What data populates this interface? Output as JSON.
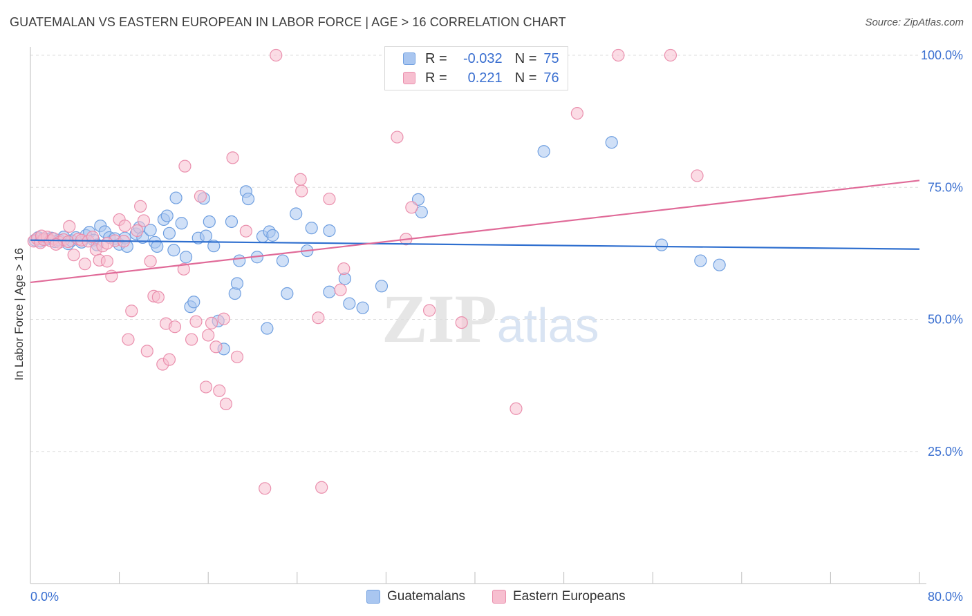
{
  "title": "GUATEMALAN VS EASTERN EUROPEAN IN LABOR FORCE | AGE > 16 CORRELATION CHART",
  "source": "Source: ZipAtlas.com",
  "watermark": {
    "zip": "ZIP",
    "atlas": "atlas"
  },
  "legend": {
    "rows": [
      {
        "r_label": "R =",
        "r_value": "-0.032",
        "n_label": "N =",
        "n_value": "75",
        "color": "#a9c6f0",
        "border": "#6f9fe0"
      },
      {
        "r_label": "R =",
        "r_value": "0.221",
        "n_label": "N =",
        "n_value": "76",
        "color": "#f7bfd0",
        "border": "#ea8fad"
      }
    ]
  },
  "bottom_legend": [
    {
      "label": "Guatemalans",
      "color": "#a9c6f0",
      "border": "#6f9fe0"
    },
    {
      "label": "Eastern Europeans",
      "color": "#f7bfd0",
      "border": "#ea8fad"
    }
  ],
  "chart_data": {
    "type": "scatter",
    "title": "GUATEMALAN VS EASTERN EUROPEAN IN LABOR FORCE | AGE > 16 CORRELATION CHART",
    "xlabel": "",
    "ylabel": "In Labor Force | Age > 16",
    "xlim": [
      0,
      80
    ],
    "ylim": [
      0,
      100
    ],
    "x_tick_labels": [
      "0.0%",
      "80.0%"
    ],
    "y_tick_labels": [
      "100.0%",
      "75.0%",
      "50.0%",
      "25.0%"
    ],
    "y_ticks": [
      100,
      75,
      50,
      25
    ],
    "series": [
      {
        "name": "Guatemalans",
        "color": "#6f9fe0",
        "fill": "#a9c6f0",
        "line_color": "#2f6fcf",
        "trend": {
          "x": [
            0,
            80
          ],
          "y": [
            65.0,
            63.3
          ]
        },
        "points": [
          [
            0.4,
            65.0
          ],
          [
            0.7,
            65.5
          ],
          [
            0.9,
            64.8
          ],
          [
            1.2,
            65.3
          ],
          [
            1.6,
            65.2
          ],
          [
            1.9,
            65.4
          ],
          [
            2.2,
            64.7
          ],
          [
            2.6,
            65.0
          ],
          [
            3.0,
            65.6
          ],
          [
            3.4,
            64.3
          ],
          [
            3.7,
            64.9
          ],
          [
            4.1,
            65.5
          ],
          [
            4.6,
            64.6
          ],
          [
            5.0,
            65.9
          ],
          [
            5.3,
            66.5
          ],
          [
            5.7,
            65.0
          ],
          [
            6.0,
            64.1
          ],
          [
            6.3,
            67.7
          ],
          [
            6.7,
            66.6
          ],
          [
            7.1,
            65.5
          ],
          [
            7.6,
            65.3
          ],
          [
            8.0,
            64.2
          ],
          [
            8.5,
            65.4
          ],
          [
            8.7,
            63.8
          ],
          [
            9.5,
            66.2
          ],
          [
            9.8,
            67.4
          ],
          [
            10.1,
            65.5
          ],
          [
            10.8,
            66.9
          ],
          [
            11.2,
            64.6
          ],
          [
            11.4,
            63.8
          ],
          [
            12.0,
            68.9
          ],
          [
            12.3,
            69.6
          ],
          [
            12.5,
            66.3
          ],
          [
            12.9,
            63.1
          ],
          [
            13.1,
            73.0
          ],
          [
            13.6,
            68.2
          ],
          [
            14.0,
            61.8
          ],
          [
            14.4,
            52.4
          ],
          [
            14.7,
            53.3
          ],
          [
            15.1,
            65.4
          ],
          [
            15.6,
            72.9
          ],
          [
            15.8,
            65.8
          ],
          [
            16.1,
            68.5
          ],
          [
            16.5,
            63.9
          ],
          [
            16.9,
            49.7
          ],
          [
            17.4,
            44.4
          ],
          [
            18.1,
            68.5
          ],
          [
            18.4,
            54.9
          ],
          [
            18.6,
            56.8
          ],
          [
            18.8,
            61.1
          ],
          [
            19.4,
            74.2
          ],
          [
            19.6,
            72.8
          ],
          [
            20.4,
            61.8
          ],
          [
            20.9,
            65.7
          ],
          [
            21.3,
            48.3
          ],
          [
            21.5,
            66.6
          ],
          [
            21.8,
            65.9
          ],
          [
            22.7,
            61.1
          ],
          [
            23.1,
            54.9
          ],
          [
            23.9,
            70.0
          ],
          [
            24.9,
            63.0
          ],
          [
            25.3,
            67.3
          ],
          [
            26.9,
            66.8
          ],
          [
            26.9,
            55.2
          ],
          [
            28.3,
            57.7
          ],
          [
            28.7,
            53.0
          ],
          [
            29.9,
            52.2
          ],
          [
            31.6,
            56.3
          ],
          [
            34.9,
            72.7
          ],
          [
            35.2,
            70.3
          ],
          [
            46.2,
            81.8
          ],
          [
            52.3,
            83.5
          ],
          [
            56.8,
            64.1
          ],
          [
            60.3,
            61.1
          ],
          [
            62.0,
            60.3
          ]
        ]
      },
      {
        "name": "Eastern Europeans",
        "color": "#ea8fad",
        "fill": "#f7bfd0",
        "line_color": "#e06a98",
        "trend": {
          "x": [
            0,
            80
          ],
          "y": [
            57.0,
            76.3
          ]
        },
        "points": [
          [
            0.3,
            64.8
          ],
          [
            0.6,
            65.3
          ],
          [
            0.9,
            64.5
          ],
          [
            1.2,
            65.1
          ],
          [
            1.5,
            65.6
          ],
          [
            1.8,
            64.9
          ],
          [
            2.1,
            65.3
          ],
          [
            2.6,
            64.6
          ],
          [
            3.0,
            65.1
          ],
          [
            3.4,
            64.7
          ],
          [
            3.9,
            62.2
          ],
          [
            4.3,
            65.2
          ],
          [
            4.6,
            65.0
          ],
          [
            4.9,
            60.5
          ],
          [
            5.2,
            64.8
          ],
          [
            5.6,
            65.6
          ],
          [
            5.9,
            63.2
          ],
          [
            6.2,
            61.2
          ],
          [
            6.5,
            63.9
          ],
          [
            6.9,
            61.0
          ],
          [
            7.3,
            58.2
          ],
          [
            7.6,
            64.9
          ],
          [
            8.0,
            68.9
          ],
          [
            8.4,
            64.8
          ],
          [
            8.8,
            46.2
          ],
          [
            9.1,
            51.6
          ],
          [
            9.6,
            66.8
          ],
          [
            9.9,
            71.4
          ],
          [
            10.2,
            68.7
          ],
          [
            10.5,
            44.0
          ],
          [
            10.8,
            61.0
          ],
          [
            11.1,
            54.4
          ],
          [
            11.5,
            54.2
          ],
          [
            11.9,
            41.5
          ],
          [
            12.2,
            49.2
          ],
          [
            12.5,
            42.4
          ],
          [
            13.0,
            48.6
          ],
          [
            13.8,
            59.5
          ],
          [
            14.5,
            46.2
          ],
          [
            14.9,
            49.6
          ],
          [
            15.3,
            73.3
          ],
          [
            15.8,
            37.2
          ],
          [
            16.0,
            47.0
          ],
          [
            16.3,
            49.3
          ],
          [
            16.7,
            44.8
          ],
          [
            17.0,
            36.5
          ],
          [
            17.4,
            50.1
          ],
          [
            17.6,
            34.0
          ],
          [
            18.6,
            42.9
          ],
          [
            19.4,
            66.7
          ],
          [
            21.1,
            18.0
          ],
          [
            22.1,
            100.0
          ],
          [
            24.3,
            76.5
          ],
          [
            24.4,
            74.3
          ],
          [
            25.9,
            50.3
          ],
          [
            26.2,
            18.2
          ],
          [
            26.9,
            72.8
          ],
          [
            27.9,
            55.6
          ],
          [
            28.2,
            59.6
          ],
          [
            33.0,
            84.5
          ],
          [
            33.8,
            65.2
          ],
          [
            34.3,
            71.2
          ],
          [
            35.9,
            51.7
          ],
          [
            38.8,
            49.4
          ],
          [
            43.7,
            33.1
          ],
          [
            49.2,
            89.0
          ],
          [
            52.9,
            100.0
          ],
          [
            57.6,
            100.0
          ],
          [
            60.0,
            77.2
          ],
          [
            18.2,
            80.6
          ],
          [
            13.9,
            79.0
          ],
          [
            8.5,
            67.7
          ],
          [
            1.0,
            65.8
          ],
          [
            2.3,
            64.2
          ],
          [
            6.9,
            64.4
          ],
          [
            3.5,
            67.6
          ]
        ]
      }
    ],
    "grid": true,
    "legend_placement": "top-center"
  }
}
